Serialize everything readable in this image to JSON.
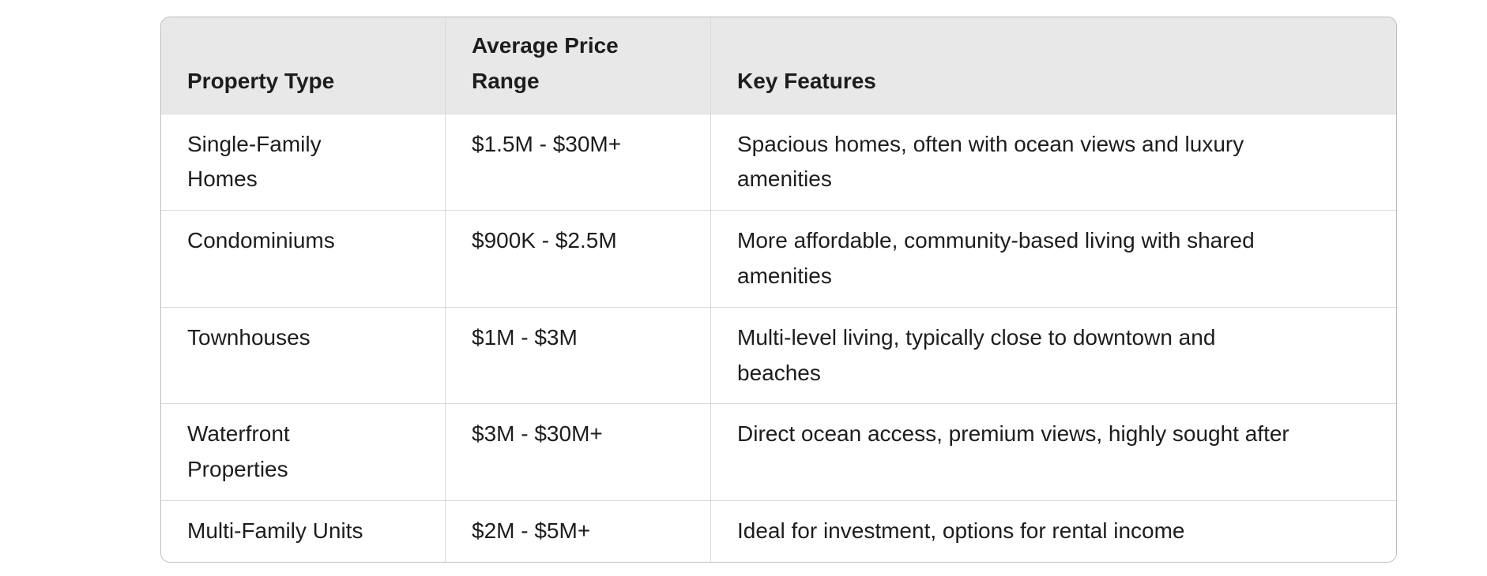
{
  "table": {
    "columns": [
      {
        "label": "Property Type"
      },
      {
        "label": "Average Price Range"
      },
      {
        "label": "Key Features"
      }
    ],
    "rows": [
      {
        "property_type": "Single-Family Homes",
        "price_range": "$1.5M - $30M+",
        "key_features": "Spacious homes, often with ocean views and luxury amenities"
      },
      {
        "property_type": "Condominiums",
        "price_range": "$900K - $2.5M",
        "key_features": "More affordable, community-based living with shared amenities"
      },
      {
        "property_type": "Townhouses",
        "price_range": "$1M - $3M",
        "key_features": "Multi-level living, typically close to downtown and beaches"
      },
      {
        "property_type": "Waterfront Properties",
        "price_range": "$3M - $30M+",
        "key_features": "Direct ocean access, premium views, highly sought after"
      },
      {
        "property_type": "Multi-Family Units",
        "price_range": "$2M - $5M+",
        "key_features": "Ideal for investment, options for rental income"
      }
    ],
    "colors": {
      "header_bg": "#e8e8e8",
      "border_outer": "#bcbcbc",
      "border_inner": "#dadada",
      "text": "#1d1d1f",
      "page_bg": "#ffffff"
    }
  }
}
